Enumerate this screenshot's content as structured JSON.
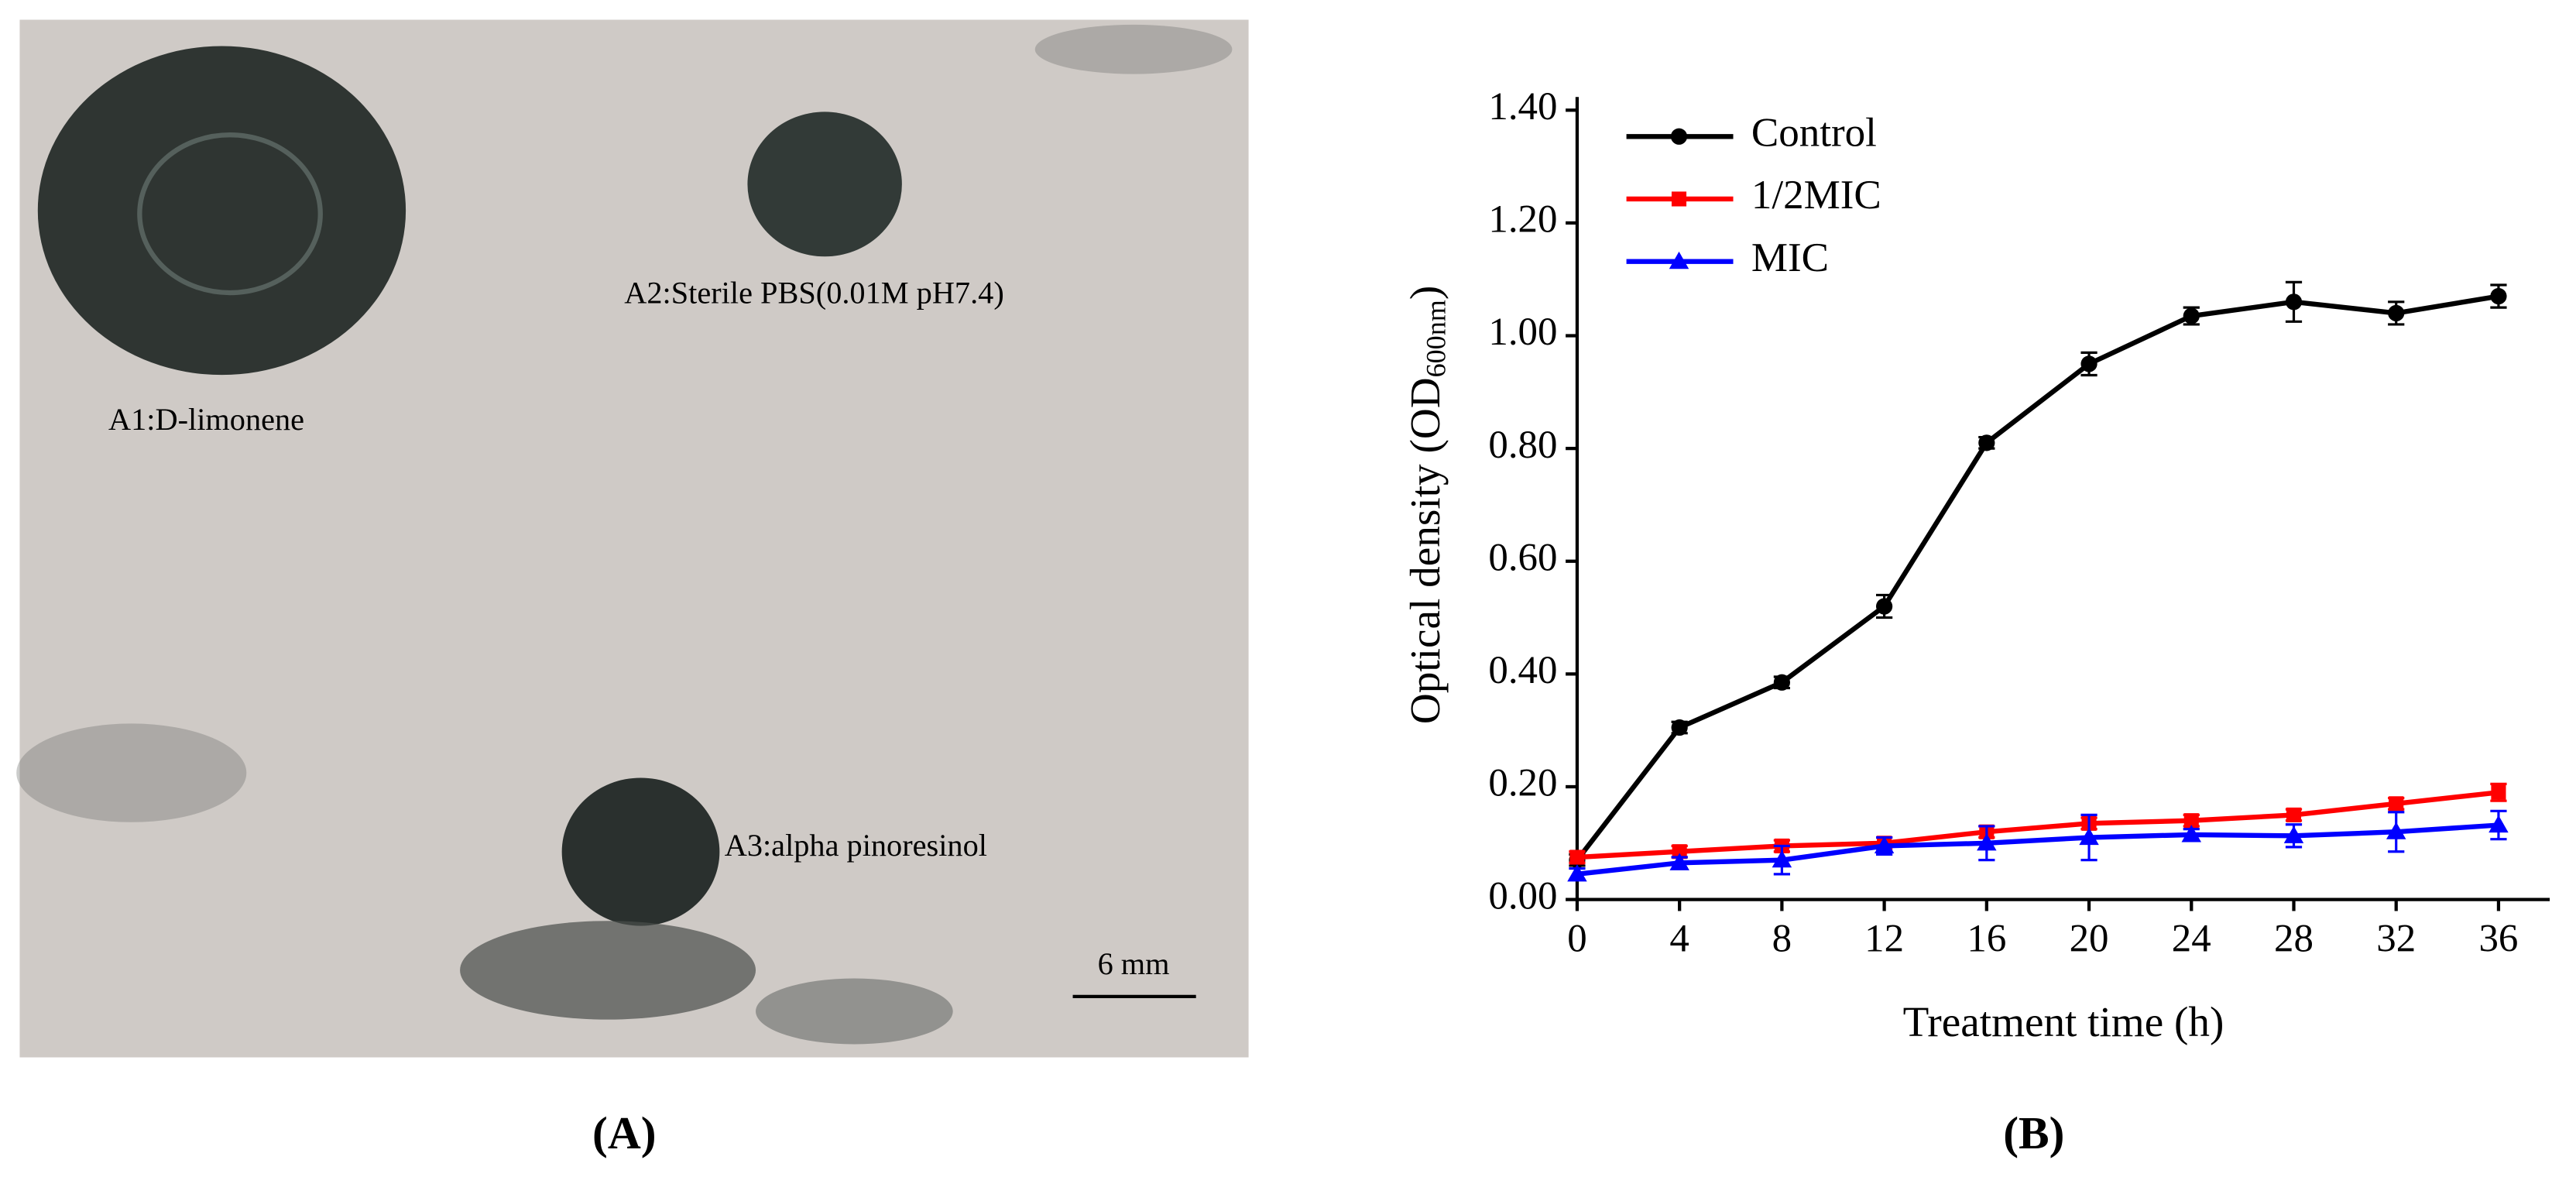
{
  "panel_a": {
    "label_a1": "A1:D-limonene",
    "label_a2": "A2:Sterile PBS(0.01M pH7.4)",
    "label_a3": "A3:alpha pinoresinol",
    "scale_bar": "6 mm",
    "caption": "(A)"
  },
  "chart_data": {
    "type": "line",
    "caption": "(B)",
    "x_label": "Treatment time (h)",
    "y_label": "Optical density (OD",
    "y_label_sub": "600nm",
    "y_label_end": ")",
    "x": [
      0,
      4,
      8,
      12,
      16,
      20,
      24,
      28,
      32,
      36
    ],
    "series": [
      {
        "name": "Control",
        "color": "#000000",
        "marker": "circle",
        "values": [
          0.07,
          0.305,
          0.385,
          0.52,
          0.81,
          0.95,
          1.035,
          1.06,
          1.04,
          1.07
        ],
        "errors": [
          0.01,
          0.01,
          0.01,
          0.02,
          0.01,
          0.02,
          0.015,
          0.035,
          0.02,
          0.02
        ]
      },
      {
        "name": "1/2MIC",
        "color": "#ff0000",
        "marker": "square",
        "values": [
          0.075,
          0.085,
          0.095,
          0.1,
          0.12,
          0.135,
          0.14,
          0.15,
          0.17,
          0.19
        ],
        "errors": [
          0.01,
          0.01,
          0.01,
          0.01,
          0.01,
          0.01,
          0.01,
          0.01,
          0.01,
          0.015
        ]
      },
      {
        "name": "MIC",
        "color": "#0000ff",
        "marker": "triangle",
        "values": [
          0.045,
          0.065,
          0.07,
          0.095,
          0.1,
          0.11,
          0.115,
          0.113,
          0.12,
          0.132
        ],
        "errors": [
          0.01,
          0.01,
          0.025,
          0.015,
          0.03,
          0.04,
          0.01,
          0.02,
          0.035,
          0.025
        ]
      }
    ],
    "xlim": [
      0,
      38
    ],
    "xticks": [
      0,
      4,
      8,
      12,
      16,
      20,
      24,
      28,
      32,
      36
    ],
    "ylim": [
      0,
      1.4
    ],
    "yticks": [
      {
        "value": 0,
        "label": "0.00"
      },
      {
        "value": 0.2,
        "label": "0.20"
      },
      {
        "value": 0.4,
        "label": "0.40"
      },
      {
        "value": 0.6,
        "label": "0.60"
      },
      {
        "value": 0.8,
        "label": "0.80"
      },
      {
        "value": 1.0,
        "label": "1.00"
      },
      {
        "value": 1.2,
        "label": "1.20"
      },
      {
        "value": 1.4,
        "label": "1.40"
      }
    ],
    "legend": "top-left",
    "grid": false
  }
}
